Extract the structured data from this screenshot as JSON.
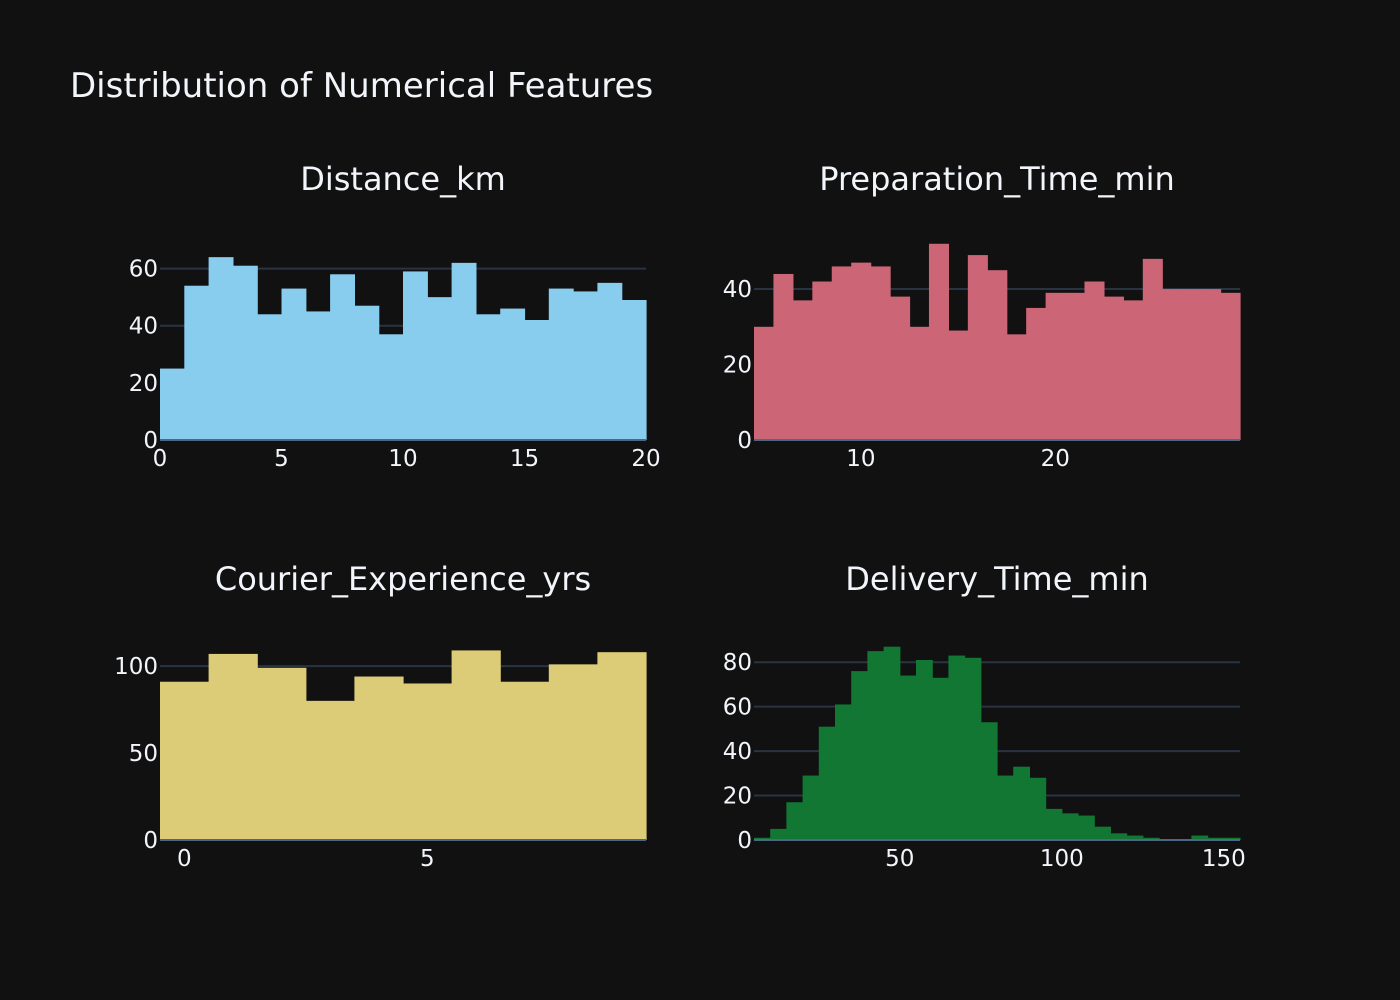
{
  "title": "Distribution of Numerical Features",
  "colors": {
    "background": "#111111",
    "text": "#f2f5fa",
    "grid": "#283442"
  },
  "chart_data": [
    {
      "type": "bar",
      "subtitle": "Distance_km",
      "color": "#88ccee",
      "x_range": [
        0,
        20
      ],
      "y_range": [
        0,
        70
      ],
      "bin_start": 0,
      "bin_width": 1,
      "values": [
        25,
        54,
        64,
        61,
        44,
        53,
        45,
        58,
        47,
        37,
        59,
        50,
        62,
        44,
        46,
        42,
        53,
        52,
        55,
        49
      ],
      "x_ticks": [
        0,
        5,
        10,
        15,
        20
      ],
      "x_tick_labels": [
        "0",
        "5",
        "10",
        "15",
        "20"
      ],
      "y_ticks": [
        0,
        20,
        40,
        60
      ],
      "y_tick_labels": [
        "0",
        "20",
        "40",
        "60"
      ],
      "grid": true
    },
    {
      "type": "bar",
      "subtitle": "Preparation_Time_min",
      "color": "#cc6677",
      "x_range": [
        4.5,
        29.5
      ],
      "y_range": [
        0,
        53
      ],
      "bin_start": 4.5,
      "bin_width": 1,
      "values": [
        30,
        44,
        37,
        42,
        46,
        47,
        46,
        38,
        30,
        52,
        29,
        49,
        45,
        28,
        35,
        39,
        39,
        42,
        38,
        37,
        48,
        40,
        40,
        40,
        39
      ],
      "x_ticks": [
        10,
        20
      ],
      "x_tick_labels": [
        "10",
        "20"
      ],
      "y_ticks": [
        0,
        20,
        40
      ],
      "y_tick_labels": [
        "0",
        "20",
        "40"
      ],
      "grid": true
    },
    {
      "type": "bar",
      "subtitle": "Courier_Experience_yrs",
      "color": "#ddcc77",
      "x_range": [
        -0.5,
        9.5
      ],
      "y_range": [
        0,
        115
      ],
      "bin_start": -0.5,
      "bin_width": 1,
      "values": [
        91,
        107,
        99,
        80,
        94,
        90,
        109,
        91,
        101,
        108
      ],
      "x_ticks": [
        0,
        5
      ],
      "x_tick_labels": [
        "0",
        "5"
      ],
      "y_ticks": [
        0,
        50,
        100
      ],
      "y_tick_labels": [
        "0",
        "50",
        "100"
      ],
      "grid": true
    },
    {
      "type": "bar",
      "subtitle": "Delivery_Time_min",
      "color": "#117733",
      "x_range": [
        5,
        155
      ],
      "y_range": [
        0,
        90
      ],
      "bin_start": 5,
      "bin_width": 5,
      "values": [
        1,
        5,
        17,
        29,
        51,
        61,
        76,
        85,
        87,
        74,
        81,
        73,
        83,
        82,
        53,
        29,
        33,
        28,
        14,
        12,
        11,
        6,
        3,
        2,
        1,
        0,
        0,
        2,
        1,
        1
      ],
      "x_ticks": [
        50,
        100,
        150
      ],
      "x_tick_labels": [
        "50",
        "100",
        "150"
      ],
      "y_ticks": [
        0,
        20,
        40,
        60,
        80
      ],
      "y_tick_labels": [
        "0",
        "20",
        "40",
        "60",
        "80"
      ],
      "grid": true
    }
  ]
}
